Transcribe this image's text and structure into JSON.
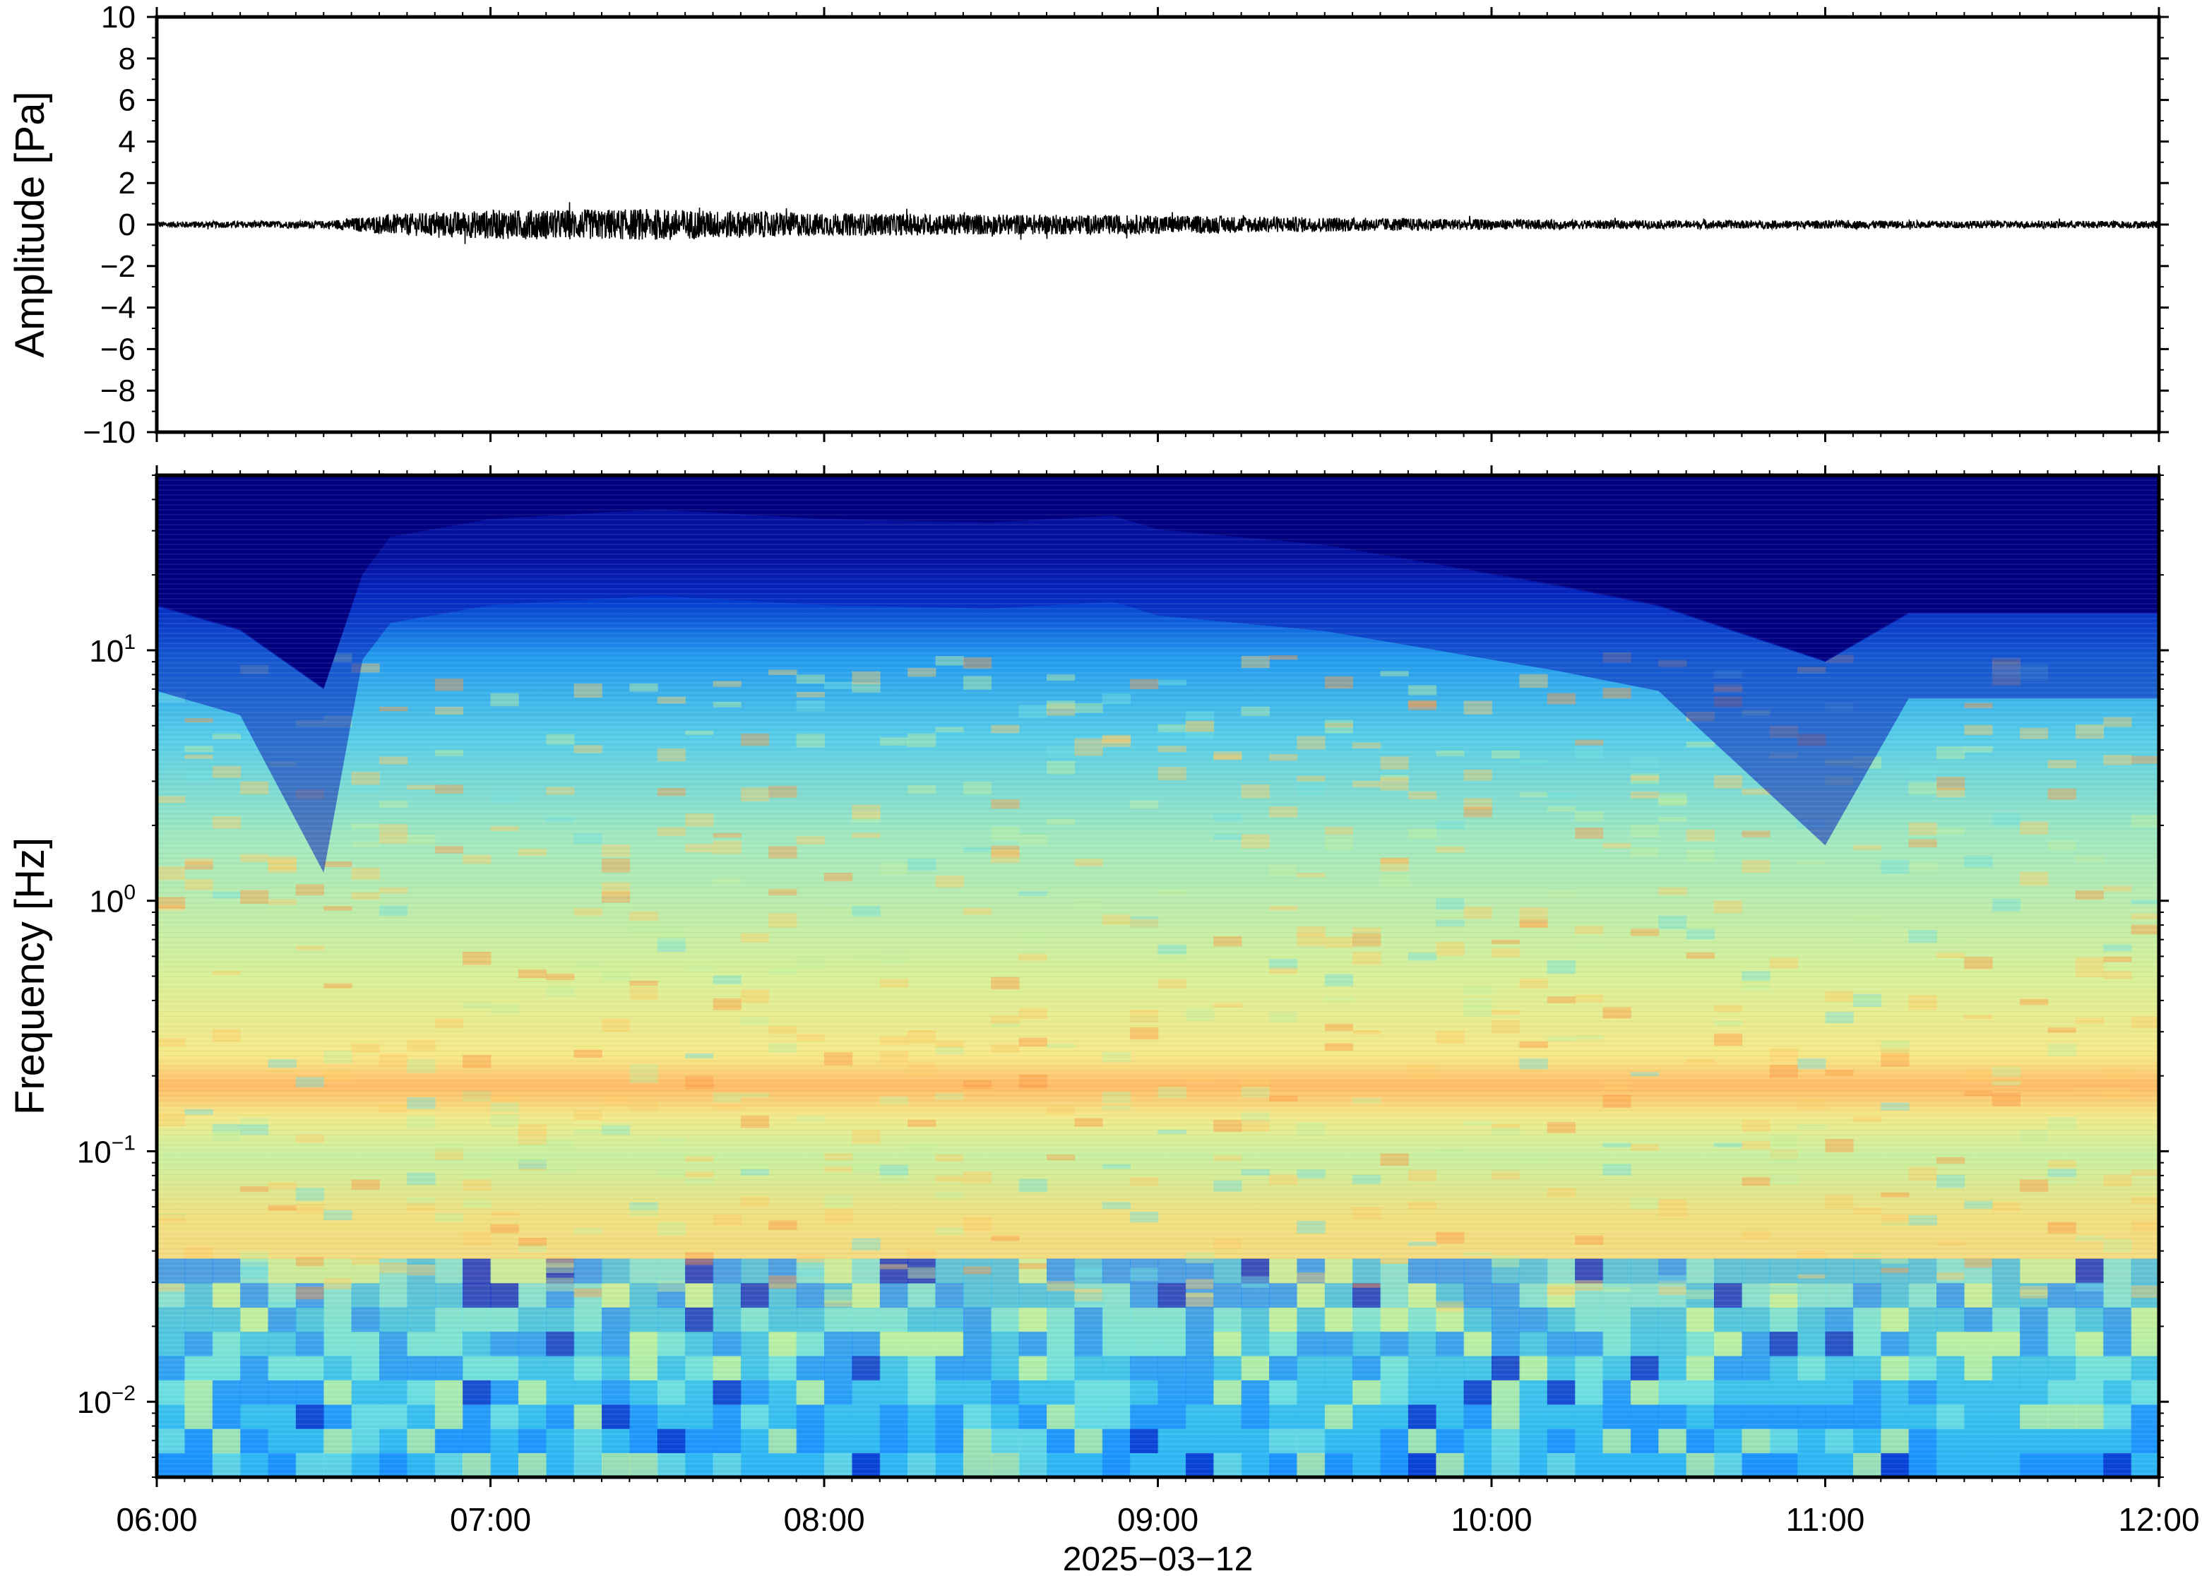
{
  "chart_data": [
    {
      "type": "line",
      "ylabel": "Amplitude [Pa]",
      "ylim": [
        -10,
        10
      ],
      "yticks": [
        10,
        8,
        6,
        4,
        2,
        0,
        -2,
        -4,
        -6,
        -8,
        -10
      ],
      "ytick_labels": [
        "10",
        "8",
        "6",
        "4",
        "2",
        "0",
        "−2",
        "−4",
        "−6",
        "−8",
        "−10"
      ],
      "series": [
        {
          "x_hours": [
            6.0,
            6.5,
            6.7,
            7.0,
            7.5,
            8.0,
            8.5,
            9.0,
            9.5,
            10.0,
            10.5,
            11.0,
            11.5,
            12.0
          ],
          "envelope_pa": [
            0.15,
            0.18,
            0.5,
            0.7,
            0.75,
            0.55,
            0.5,
            0.45,
            0.35,
            0.25,
            0.2,
            0.2,
            0.18,
            0.18
          ]
        }
      ],
      "line_color": "#000000",
      "grid": false
    },
    {
      "type": "heatmap",
      "ylabel": "Frequency [Hz]",
      "y_scale": "log",
      "ylim": [
        0.005,
        50
      ],
      "yticks": [
        0.01,
        0.1,
        1,
        10
      ],
      "ytick_labels": [
        {
          "base": "10",
          "exp": "−2"
        },
        {
          "base": "10",
          "exp": "−1"
        },
        {
          "base": "10",
          "exp": "0"
        },
        {
          "base": "10",
          "exp": "1"
        }
      ],
      "x_range": [
        "06:00",
        "12:00"
      ],
      "xtick_labels": [
        "06:00",
        "07:00",
        "08:00",
        "09:00",
        "10:00",
        "11:00",
        "12:00"
      ],
      "xlabel": "2025−03−12",
      "colormap": [
        "#000080",
        "#0022cc",
        "#1a8cff",
        "#33bbf0",
        "#70e0e0",
        "#c0f0a0",
        "#f0f080",
        "#ffcc66",
        "#ff9944"
      ],
      "upper_edge_hz": [
        {
          "t": "06:00",
          "hz": 15
        },
        {
          "t": "06:15",
          "hz": 12
        },
        {
          "t": "06:30",
          "hz": 7
        },
        {
          "t": "06:37",
          "hz": 20
        },
        {
          "t": "06:42",
          "hz": 28
        },
        {
          "t": "07:00",
          "hz": 33
        },
        {
          "t": "07:30",
          "hz": 36
        },
        {
          "t": "08:00",
          "hz": 33
        },
        {
          "t": "08:30",
          "hz": 32
        },
        {
          "t": "08:52",
          "hz": 34
        },
        {
          "t": "09:00",
          "hz": 30
        },
        {
          "t": "09:30",
          "hz": 26
        },
        {
          "t": "10:00",
          "hz": 20
        },
        {
          "t": "10:12",
          "hz": 18
        },
        {
          "t": "10:30",
          "hz": 15
        },
        {
          "t": "11:00",
          "hz": 9
        },
        {
          "t": "11:15",
          "hz": 14
        },
        {
          "t": "12:00",
          "hz": 14
        }
      ],
      "grid": false
    }
  ]
}
